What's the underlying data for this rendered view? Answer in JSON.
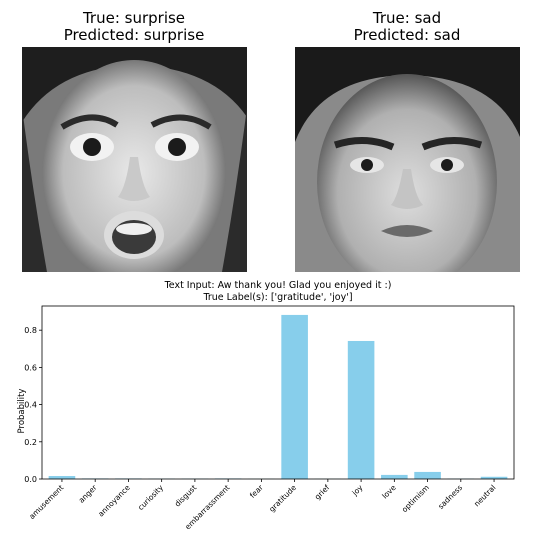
{
  "images": [
    {
      "true_text": "True: surprise",
      "pred_text": "Predicted: surprise",
      "true_label": "surprise",
      "predicted_label": "surprise"
    },
    {
      "true_text": "True: sad",
      "pred_text": "Predicted: sad",
      "true_label": "sad",
      "predicted_label": "sad"
    }
  ],
  "chart_data": {
    "type": "bar",
    "title_line1": "Text Input: Aw thank you! Glad you enjoyed it :)",
    "title_line2": "True Label(s): ['gratitude', 'joy']",
    "ylabel": "Probability",
    "xlabel": "",
    "categories": [
      "amusement",
      "anger",
      "annoyance",
      "curiosity",
      "disgust",
      "embarrassment",
      "fear",
      "gratitude",
      "grief",
      "joy",
      "love",
      "optimism",
      "sadness",
      "neutral"
    ],
    "values": [
      0.016,
      0.003,
      0.003,
      0.002,
      0.002,
      0.003,
      0.001,
      0.882,
      0.001,
      0.742,
      0.022,
      0.038,
      0.002,
      0.012
    ],
    "ylim": [
      0,
      0.93
    ],
    "yticks": [
      "0.0",
      "0.2",
      "0.4",
      "0.6",
      "0.8"
    ],
    "bar_color": "#87ceeb",
    "grid": false
  }
}
